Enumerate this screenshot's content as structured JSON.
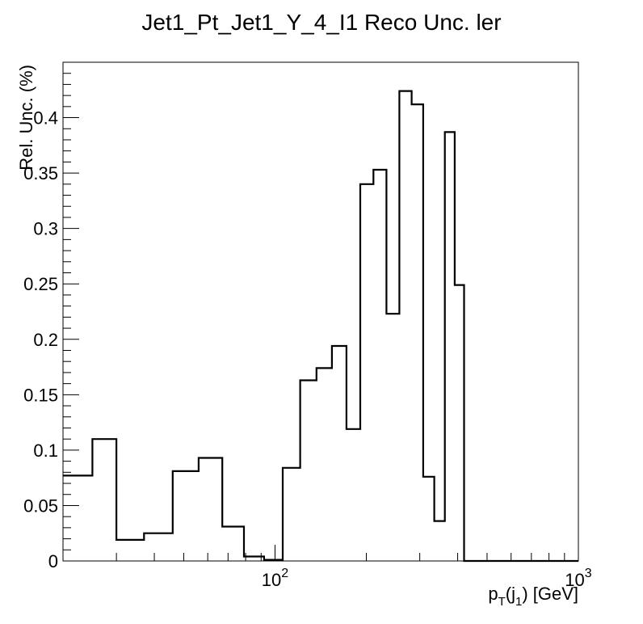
{
  "chart_data": {
    "type": "histogram-step",
    "title": "Jet1_Pt_Jet1_Y_4_I1 Reco Unc. ler",
    "xlabel": {
      "base": "p",
      "sub1": "T",
      "mid": "(j",
      "sub2": "1",
      "end": ") [GeV]"
    },
    "ylabel": "Rel. Unc. (%)",
    "x_scale": "log",
    "xlim": [
      20,
      1000
    ],
    "ylim": [
      0,
      0.45
    ],
    "x_ticks": [
      {
        "base": "10",
        "exp": "2",
        "value": 100
      },
      {
        "base": "10",
        "exp": "3",
        "value": 1000
      }
    ],
    "y_ticks": [
      {
        "value": 0,
        "label": "0"
      },
      {
        "value": 0.05,
        "label": "0.05"
      },
      {
        "value": 0.1,
        "label": "0.1"
      },
      {
        "value": 0.15,
        "label": "0.15"
      },
      {
        "value": 0.2,
        "label": "0.2"
      },
      {
        "value": 0.25,
        "label": "0.25"
      },
      {
        "value": 0.3,
        "label": "0.3"
      },
      {
        "value": 0.35,
        "label": "0.35"
      },
      {
        "value": 0.4,
        "label": "0.4"
      }
    ],
    "bin_edges": [
      20,
      25,
      30,
      37,
      46,
      56,
      67,
      79,
      92,
      106,
      121,
      137,
      154,
      172,
      191,
      211,
      233,
      257,
      282,
      308,
      335,
      363,
      391,
      420,
      450,
      1000
    ],
    "values": [
      0.077,
      0.11,
      0.019,
      0.025,
      0.081,
      0.093,
      0.031,
      0.004,
      0.001,
      0.084,
      0.163,
      0.174,
      0.194,
      0.119,
      0.34,
      0.353,
      0.223,
      0.424,
      0.412,
      0.076,
      0.036,
      0.387,
      0.249,
      0.0,
      0.0
    ]
  }
}
